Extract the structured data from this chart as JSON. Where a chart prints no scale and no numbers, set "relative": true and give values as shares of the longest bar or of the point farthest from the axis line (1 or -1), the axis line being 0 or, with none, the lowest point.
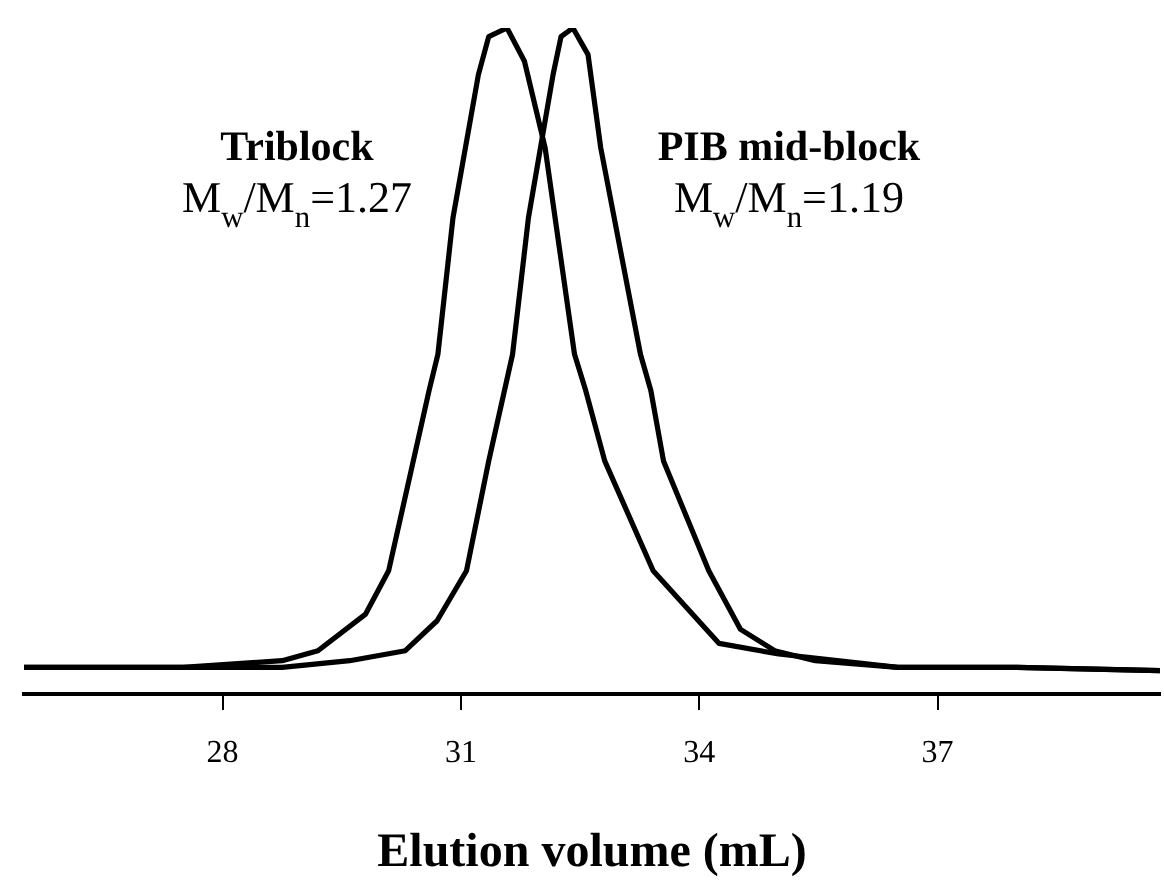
{
  "chart_data": {
    "type": "line",
    "relative": true,
    "xlabel": "Elution volume (mL)",
    "xlim": [
      25.5,
      39.8
    ],
    "xticks": [
      28,
      31,
      34,
      37
    ],
    "legend": false,
    "grid": false,
    "marker": "none",
    "line_style": "solid",
    "annotations": [
      "M$_{w}$/M$_{n}$=1.27",
      "M$_{w}$/M$_{n}$=1.19"
    ],
    "series": [
      {
        "name": "Triblock",
        "color": "#000000",
        "x": [
          25.5,
          26.5,
          27.5,
          28.75,
          29.2,
          29.8,
          30.09,
          30.6,
          30.71,
          30.9,
          31.22,
          31.35,
          31.58,
          31.8,
          32.06,
          32.43,
          32.57,
          32.81,
          33.42,
          34.25,
          35.0,
          36.5,
          38.0,
          39.8
        ],
        "values": [
          0.04,
          0.04,
          0.04,
          0.05,
          0.065,
          0.12,
          0.185,
          0.456,
          0.51,
          0.715,
          0.93,
          0.987,
          1.0,
          0.95,
          0.82,
          0.51,
          0.456,
          0.35,
          0.185,
          0.076,
          0.06,
          0.04,
          0.04,
          0.035
        ]
      },
      {
        "name": "PIB mid-block",
        "color": "#000000",
        "x": [
          25.5,
          26.5,
          27.5,
          28.75,
          29.6,
          30.3,
          30.7,
          31.07,
          31.35,
          31.65,
          31.85,
          32.16,
          32.26,
          32.41,
          32.6,
          32.76,
          33.26,
          33.39,
          33.55,
          34.12,
          34.52,
          34.95,
          35.46,
          36.5,
          38.0,
          39.8
        ],
        "values": [
          0.04,
          0.04,
          0.04,
          0.04,
          0.05,
          0.065,
          0.11,
          0.185,
          0.35,
          0.51,
          0.715,
          0.93,
          0.987,
          1.0,
          0.96,
          0.82,
          0.51,
          0.456,
          0.35,
          0.185,
          0.097,
          0.065,
          0.05,
          0.04,
          0.04,
          0.035
        ]
      }
    ]
  }
}
